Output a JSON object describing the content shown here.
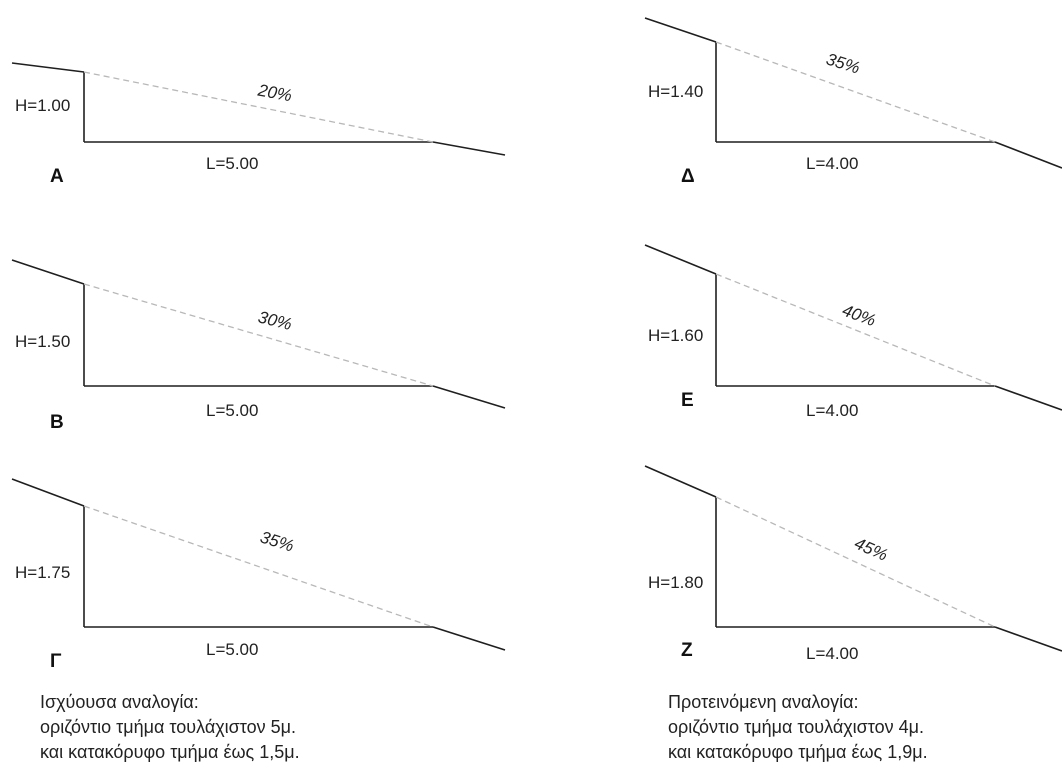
{
  "panels": [
    {
      "id": "A",
      "letter": "Α",
      "height": "H=1.00",
      "length": "L=5.00",
      "slope": "20%",
      "slope_value": 0.2
    },
    {
      "id": "B",
      "letter": "Β",
      "height": "H=1.50",
      "length": "L=5.00",
      "slope": "30%",
      "slope_value": 0.3
    },
    {
      "id": "G",
      "letter": "Γ",
      "height": "H=1.75",
      "length": "L=5.00",
      "slope": "35%",
      "slope_value": 0.35
    },
    {
      "id": "D",
      "letter": "Δ",
      "height": "H=1.40",
      "length": "L=4.00",
      "slope": "35%",
      "slope_value": 0.35
    },
    {
      "id": "E",
      "letter": "Ε",
      "height": "H=1.60",
      "length": "L=4.00",
      "slope": "40%",
      "slope_value": 0.4
    },
    {
      "id": "Z",
      "letter": "Ζ",
      "height": "H=1.80",
      "length": "L=4.00",
      "slope": "45%",
      "slope_value": 0.45
    }
  ],
  "notes": {
    "current": {
      "line1": "Ισχύουσα αναλογία:",
      "line2": "οριζόντιο τμήμα τουλάχιστον 5μ.",
      "line3": "και κατακόρυφο τμήμα έως 1,5μ."
    },
    "proposed": {
      "line1": "Προτεινόμενη αναλογία:",
      "line2": "οριζόντιο τμήμα τουλάχιστον 4μ.",
      "line3": "και κατακόρυφο τμήμα έως 1,9μ."
    }
  },
  "colors": {
    "line": "#1f1f1f",
    "dashed": "#b8b8b8"
  }
}
